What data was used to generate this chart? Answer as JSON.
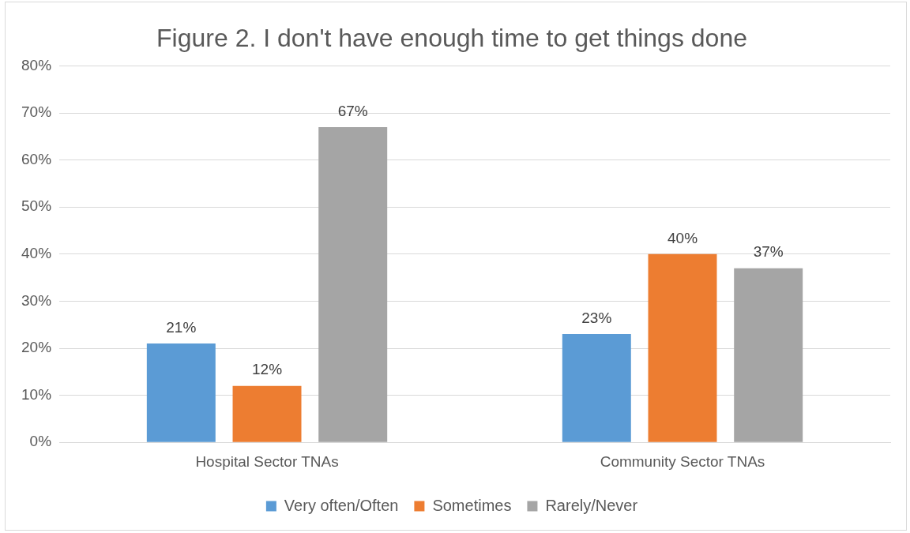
{
  "chart_data": {
    "type": "bar",
    "title": "Figure 2. I don't have enough time to get things done",
    "categories": [
      "Hospital Sector TNAs",
      "Community Sector TNAs"
    ],
    "series": [
      {
        "name": "Very often/Often",
        "color": "#5b9bd5",
        "values": [
          21,
          23
        ],
        "value_labels": [
          "21%",
          "23%"
        ]
      },
      {
        "name": "Sometimes",
        "color": "#ed7d31",
        "values": [
          12,
          40
        ],
        "value_labels": [
          "12%",
          "40%"
        ]
      },
      {
        "name": "Rarely/Never",
        "color": "#a5a5a5",
        "values": [
          67,
          37
        ],
        "value_labels": [
          "67%",
          "37%"
        ]
      }
    ],
    "ylim": [
      0,
      80
    ],
    "yticks": [
      {
        "value": 0,
        "label": "0%"
      },
      {
        "value": 10,
        "label": "10%"
      },
      {
        "value": 20,
        "label": "20%"
      },
      {
        "value": 30,
        "label": "30%"
      },
      {
        "value": 40,
        "label": "40%"
      },
      {
        "value": 50,
        "label": "50%"
      },
      {
        "value": 60,
        "label": "60%"
      },
      {
        "value": 70,
        "label": "70%"
      },
      {
        "value": 80,
        "label": "80%"
      }
    ],
    "grid": "y",
    "legend": "bottom"
  }
}
